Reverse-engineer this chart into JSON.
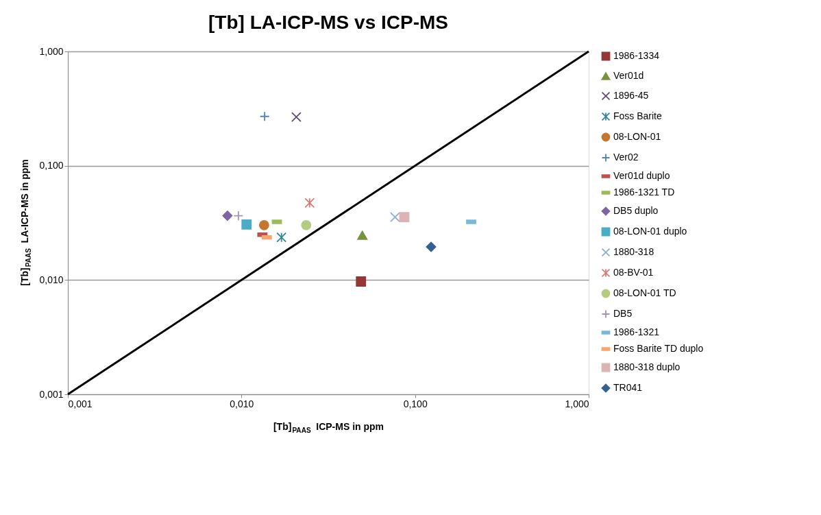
{
  "chart_data": {
    "type": "scatter",
    "title": "[Tb] LA-ICP-MS vs ICP-MS",
    "xlabel": "[Tb]$_{PAAS}$ ICP-MS in ppm",
    "ylabel": "[Tb]$_{PAAS}$ LA-ICP-MS in ppm",
    "log": "xy",
    "grid": "y",
    "legend": "right",
    "xlim": [
      0.001,
      1
    ],
    "ylim": [
      0.001,
      1
    ],
    "xticks": [
      {
        "value": 0.001,
        "label": "0,001"
      },
      {
        "value": 0.01,
        "label": "0,010"
      },
      {
        "value": 0.1,
        "label": "0,100"
      },
      {
        "value": 1,
        "label": "1,000"
      }
    ],
    "yticks": [
      {
        "value": 0.001,
        "label": "0,001"
      },
      {
        "value": 0.01,
        "label": "0,010"
      },
      {
        "value": 0.1,
        "label": "0,100"
      },
      {
        "value": 1,
        "label": "1,000"
      }
    ],
    "series": [
      {
        "type": "line",
        "color": "#000000",
        "x": [
          0.001,
          1
        ],
        "values": [
          0.001,
          1
        ],
        "marker": "none",
        "line_style": "solid"
      },
      {
        "name": "1986-1334",
        "color": "#953735",
        "marker": "square",
        "x": [
          0.0488
        ],
        "values": [
          0.0097
        ]
      },
      {
        "name": "Ver01d",
        "color": "#77933c",
        "marker": "triangle",
        "x": [
          0.0497
        ],
        "values": [
          0.0246
        ]
      },
      {
        "name": "1896-45",
        "color": "#604a7b",
        "marker": "x",
        "x": [
          0.0207
        ],
        "values": [
          0.267
        ]
      },
      {
        "name": "Foss Barite",
        "color": "#31859c",
        "marker": "cross",
        "x": [
          0.017
        ],
        "values": [
          0.0236
        ]
      },
      {
        "name": "08-LON-01",
        "color": "#c5772f",
        "marker": "circle",
        "x": [
          0.0135
        ],
        "values": [
          0.0302
        ]
      },
      {
        "name": "Ver02",
        "color": "#4f81bd",
        "marker": "plus",
        "x": [
          0.0136
        ],
        "values": [
          0.27
        ]
      },
      {
        "name": "Ver01d duplo",
        "color": "#c0504d",
        "x": [
          0.0132
        ],
        "values": [
          0.0249
        ]
      },
      {
        "name": "1986-1321 TD",
        "color": "#9bbb59",
        "x": [
          0.016
        ],
        "values": [
          0.0323
        ]
      },
      {
        "name": "DB5 duplo",
        "color": "#8064a2",
        "marker": "diamond",
        "x": [
          0.0083
        ],
        "values": [
          0.0365
        ]
      },
      {
        "name": "08-LON-01 duplo",
        "color": "#4bacc6",
        "marker": "square",
        "x": [
          0.0107
        ],
        "values": [
          0.0306
        ]
      },
      {
        "name": "1880-318",
        "color": "#8eaadc",
        "marker": "x",
        "x": [
          0.0767
        ],
        "values": [
          0.0355
        ]
      },
      {
        "name": "08-BV-01",
        "color": "#d67b78",
        "marker": "cross",
        "x": [
          0.0247
        ],
        "values": [
          0.0473
        ]
      },
      {
        "name": "08-LON-01 TD",
        "color": "#b3cc82",
        "marker": "circle",
        "x": [
          0.0236
        ],
        "values": [
          0.0302
        ]
      },
      {
        "name": "DB5",
        "color": "#a391c0",
        "marker": "plus",
        "x": [
          0.0096
        ],
        "values": [
          0.0365
        ]
      },
      {
        "name": "1986-1321",
        "color": "#75bad7",
        "x": [
          0.2105
        ],
        "values": [
          0.0323
        ]
      },
      {
        "name": "Foss Barite TD duplo",
        "color": "#f9a36e",
        "x": [
          0.014
        ],
        "values": [
          0.0236
        ]
      },
      {
        "name": "1880-318 duplo",
        "color": "#ddb3b3",
        "marker": "square",
        "x": [
          0.0867
        ],
        "values": [
          0.0355
        ]
      },
      {
        "name": "TR041",
        "color": "#376092",
        "marker": "diamond",
        "x": [
          0.1237
        ],
        "values": [
          0.0195
        ]
      }
    ]
  }
}
